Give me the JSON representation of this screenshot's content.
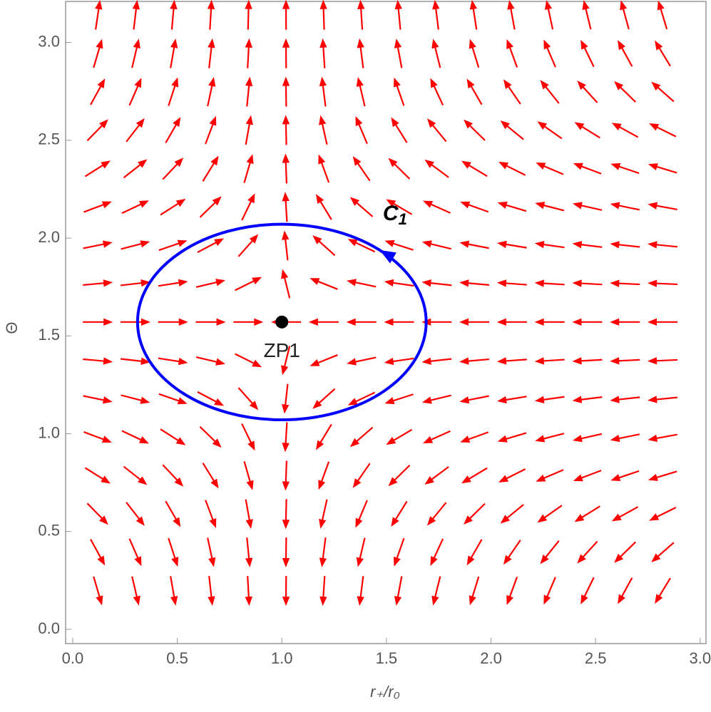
{
  "chart_data": {
    "type": "vector",
    "x_label": "r₊/r₀",
    "y_label": "Θ",
    "xlim": [
      -0.034,
      3.028
    ],
    "ylim": [
      -0.073,
      3.21
    ],
    "xticks": [
      {
        "value": 0,
        "label": "0.0"
      },
      0.5,
      {
        "value": 1,
        "label": "1.0"
      },
      1.5,
      {
        "value": 2,
        "label": "2.0"
      },
      2.5,
      {
        "value": 3,
        "label": "3.0"
      }
    ],
    "yticks": [
      {
        "value": 0,
        "label": "0.0"
      },
      0.5,
      {
        "value": 1,
        "label": "1.0"
      },
      1.5,
      {
        "value": 2,
        "label": "2.0"
      },
      2.5,
      {
        "value": 3,
        "label": "3.0"
      }
    ],
    "color": "#ff0000",
    "x": [
      0.12,
      0.3,
      0.48,
      0.66,
      0.84,
      1.02,
      1.2,
      1.38,
      1.56,
      1.74,
      1.92,
      2.1,
      2.28,
      2.46,
      2.64,
      2.82
    ],
    "y": [
      0.196,
      0.393,
      0.589,
      0.785,
      0.982,
      1.178,
      1.374,
      1.571,
      1.767,
      1.963,
      2.16,
      2.356,
      2.553,
      2.749,
      2.945,
      3.142
    ],
    "u": [
      0.88,
      0.7,
      0.52,
      0.34,
      0.16,
      -0.02,
      -0.2,
      -0.38,
      -0.56,
      -0.74,
      -0.92,
      -1.1,
      -1.28,
      -1.46,
      -1.64,
      -1.82
    ],
    "v": [
      -3.0,
      -1.6,
      -0.9,
      -0.55,
      -0.33,
      -0.18,
      -0.08,
      0,
      0.08,
      0.18,
      0.33,
      0.55,
      0.9,
      1.6,
      3.0,
      6.0
    ],
    "point": {
      "label": "ZP1",
      "x": 1,
      "y": 1.571,
      "color": "#000000"
    },
    "contour": {
      "label": "C",
      "subscript": "1",
      "center": [
        1,
        1.571
      ],
      "radii": [
        0.69,
        0.5
      ],
      "color": "#0000ff"
    }
  }
}
